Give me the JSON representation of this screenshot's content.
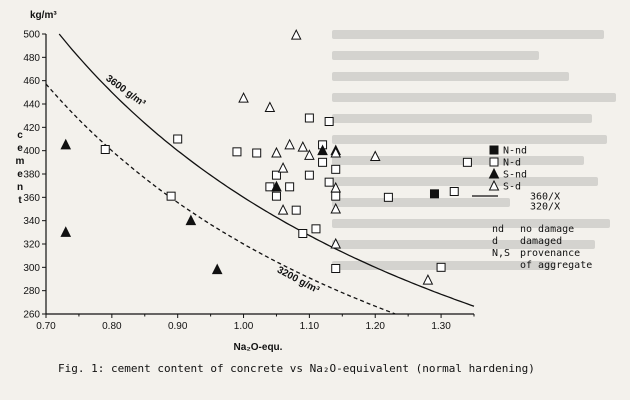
{
  "chart_data": {
    "type": "scatter",
    "title": "",
    "xlabel": "Na₂O-equ.",
    "ylabel": "cement",
    "yunit": "kg/m³",
    "xlim": [
      0.7,
      1.35
    ],
    "ylim": [
      260,
      500
    ],
    "xticks": [
      "0.70",
      "0.80",
      "0.90",
      "1.00",
      "1.10",
      "1.20",
      "1.30"
    ],
    "yticks": [
      "260",
      "280",
      "300",
      "320",
      "340",
      "360",
      "380",
      "400",
      "420",
      "440",
      "460",
      "480",
      "500"
    ],
    "series": [
      {
        "name": "N-nd",
        "marker": "filled-square",
        "points": [
          [
            1.29,
            363
          ]
        ]
      },
      {
        "name": "N-d",
        "marker": "open-square",
        "points": [
          [
            0.79,
            401
          ],
          [
            0.89,
            361
          ],
          [
            0.9,
            410
          ],
          [
            0.99,
            399
          ],
          [
            1.02,
            398
          ],
          [
            1.04,
            369
          ],
          [
            1.05,
            379
          ],
          [
            1.05,
            361
          ],
          [
            1.07,
            369
          ],
          [
            1.08,
            349
          ],
          [
            1.09,
            329
          ],
          [
            1.1,
            428
          ],
          [
            1.1,
            379
          ],
          [
            1.11,
            333
          ],
          [
            1.12,
            405
          ],
          [
            1.12,
            390
          ],
          [
            1.13,
            425
          ],
          [
            1.13,
            373
          ],
          [
            1.14,
            384
          ],
          [
            1.14,
            299
          ],
          [
            1.14,
            361
          ],
          [
            1.22,
            360
          ],
          [
            1.3,
            300
          ],
          [
            1.32,
            365
          ],
          [
            1.34,
            390
          ]
        ]
      },
      {
        "name": "S-nd",
        "marker": "filled-triangle",
        "points": [
          [
            0.73,
            405
          ],
          [
            0.73,
            330
          ],
          [
            0.92,
            340
          ],
          [
            0.96,
            298
          ],
          [
            1.05,
            369
          ],
          [
            1.12,
            400
          ],
          [
            1.14,
            400
          ]
        ]
      },
      {
        "name": "S-d",
        "marker": "open-triangle",
        "points": [
          [
            1.0,
            445
          ],
          [
            1.04,
            437
          ],
          [
            1.05,
            398
          ],
          [
            1.06,
            385
          ],
          [
            1.06,
            349
          ],
          [
            1.07,
            405
          ],
          [
            1.08,
            499
          ],
          [
            1.09,
            403
          ],
          [
            1.1,
            396
          ],
          [
            1.14,
            398
          ],
          [
            1.14,
            368
          ],
          [
            1.14,
            350
          ],
          [
            1.14,
            320
          ],
          [
            1.2,
            395
          ],
          [
            1.28,
            289
          ]
        ]
      }
    ],
    "curves": [
      {
        "name": "360/X",
        "style": "solid",
        "label": "3600 g/m³",
        "k": 360
      },
      {
        "name": "320/X",
        "style": "dashed",
        "label": "3200 g/m³",
        "k": 320
      }
    ],
    "legend_codes": [
      {
        "code": "nd",
        "desc": "no damage"
      },
      {
        "code": "d",
        "desc": "damaged"
      },
      {
        "code": "N,S",
        "desc": "provenance"
      },
      {
        "code": "",
        "desc": "of aggregate"
      }
    ],
    "grid": false,
    "legend_position": "right"
  },
  "caption": "Fig. 1: cement content of concrete vs Na₂O-equivalent (normal hardening)"
}
